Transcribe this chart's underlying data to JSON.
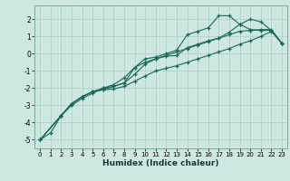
{
  "xlabel": "Humidex (Indice chaleur)",
  "ylabel": "",
  "bg_color": "#cce8e0",
  "grid_color": "#aaccc4",
  "line_color": "#1a6858",
  "xlim": [
    -0.5,
    23.5
  ],
  "ylim": [
    -5.5,
    2.8
  ],
  "xticks": [
    0,
    1,
    2,
    3,
    4,
    5,
    6,
    7,
    8,
    9,
    10,
    11,
    12,
    13,
    14,
    15,
    16,
    17,
    18,
    19,
    20,
    21,
    22,
    23
  ],
  "yticks": [
    -5,
    -4,
    -3,
    -2,
    -1,
    0,
    1,
    2
  ],
  "lines": [
    {
      "x": [
        0,
        1,
        2,
        3,
        4,
        5,
        6,
        7,
        8,
        9,
        10,
        11,
        12,
        13,
        14,
        15,
        16,
        17,
        18,
        19,
        20,
        21,
        22,
        23
      ],
      "y": [
        -5.0,
        -4.6,
        -3.6,
        -3.0,
        -2.6,
        -2.3,
        -2.0,
        -1.9,
        -1.7,
        -0.8,
        -0.5,
        -0.3,
        -0.1,
        0.1,
        0.3,
        0.5,
        0.7,
        0.9,
        1.1,
        1.3,
        1.35,
        1.4,
        1.4,
        0.6
      ]
    },
    {
      "x": [
        0,
        2,
        3,
        4,
        5,
        6,
        7,
        8,
        9,
        10,
        11,
        12,
        13,
        14,
        15,
        16,
        17,
        18,
        19,
        20,
        21,
        22,
        23
      ],
      "y": [
        -5.0,
        -3.6,
        -2.9,
        -2.5,
        -2.2,
        -2.0,
        -1.8,
        -1.4,
        -0.8,
        -0.3,
        -0.2,
        0.0,
        0.2,
        1.1,
        1.3,
        1.5,
        2.2,
        2.2,
        1.7,
        1.4,
        1.35,
        1.35,
        0.6
      ]
    },
    {
      "x": [
        0,
        2,
        3,
        4,
        5,
        6,
        7,
        8,
        9,
        10,
        11,
        12,
        13,
        14,
        15,
        16,
        17,
        18,
        19,
        20,
        21,
        22,
        23
      ],
      "y": [
        -5.0,
        -3.6,
        -2.9,
        -2.5,
        -2.2,
        -2.1,
        -1.9,
        -1.7,
        -1.2,
        -0.6,
        -0.3,
        -0.15,
        -0.1,
        0.35,
        0.55,
        0.75,
        0.9,
        1.25,
        1.7,
        2.0,
        1.85,
        1.35,
        0.6
      ]
    },
    {
      "x": [
        0,
        2,
        3,
        4,
        5,
        6,
        7,
        8,
        9,
        10,
        11,
        12,
        13,
        14,
        15,
        16,
        17,
        18,
        19,
        20,
        21,
        22,
        23
      ],
      "y": [
        -5.0,
        -3.6,
        -2.9,
        -2.5,
        -2.2,
        -2.1,
        -2.05,
        -1.9,
        -1.6,
        -1.3,
        -1.0,
        -0.85,
        -0.7,
        -0.5,
        -0.3,
        -0.1,
        0.1,
        0.3,
        0.55,
        0.75,
        1.0,
        1.3,
        0.6
      ]
    }
  ]
}
